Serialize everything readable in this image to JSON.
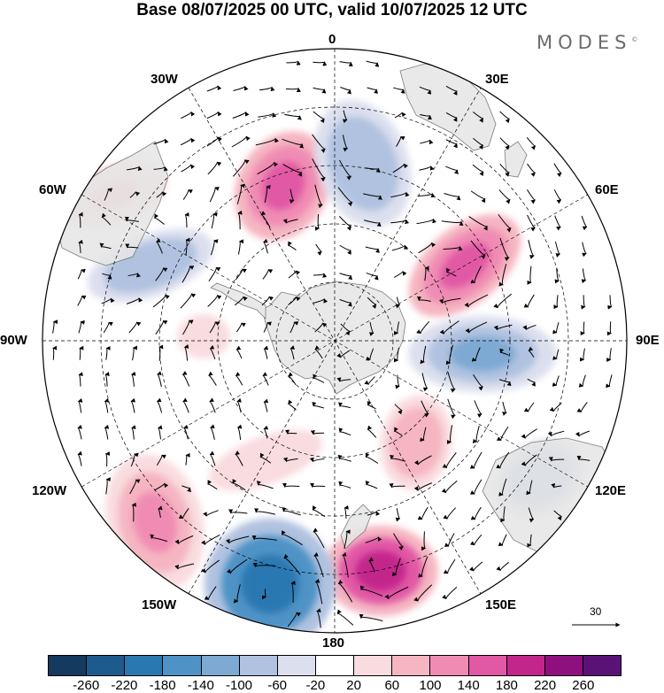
{
  "title": "Base 08/07/2025 00 UTC, valid 10/07/2025 12 UTC",
  "brand": "MODES",
  "brand_mark": "©",
  "labels": {
    "top": "0",
    "bottom": "180",
    "left": "90W",
    "right": "90E",
    "w30": "30W",
    "e30": "30E",
    "w60": "60W",
    "e60": "60E",
    "w120": "120W",
    "e120": "120E",
    "w150": "150W",
    "e150": "150E"
  },
  "reference_vector": {
    "value": "30",
    "icon": "arrow-right-icon"
  },
  "colorbar": {
    "colors": [
      "#153a5f",
      "#1d5b8f",
      "#2a78b2",
      "#4f93c6",
      "#7ea9d2",
      "#b0c2e0",
      "#dcdfee",
      "#ffffff",
      "#f9dcdf",
      "#f5b5c1",
      "#f08cb3",
      "#e159a5",
      "#c3268b",
      "#8e0f7e",
      "#5b1277"
    ],
    "ticks": [
      "-260",
      "-220",
      "-180",
      "-140",
      "-100",
      "-60",
      "-20",
      "20",
      "60",
      "100",
      "140",
      "180",
      "220",
      "260"
    ]
  },
  "map_colors": {
    "land": "#e6e6e6",
    "coast": "#666666",
    "grid": "#000000",
    "arrow": "#000000"
  },
  "anomalies": [
    {
      "name": "pink-southpacific-east",
      "v": 200
    },
    {
      "name": "blue-southpacific-center",
      "v": -200
    },
    {
      "name": "pink-pacific-west",
      "v": 120
    },
    {
      "name": "pink-atlantic-south",
      "v": 170
    },
    {
      "name": "blue-atlantic-east",
      "v": -100
    },
    {
      "name": "pink-indian-west",
      "v": 170
    },
    {
      "name": "blue-indian-center",
      "v": -110
    },
    {
      "name": "pink-indian-east",
      "v": 90
    },
    {
      "name": "blue-australia-west",
      "v": -90
    },
    {
      "name": "pink-southamerica-west",
      "v": 60
    },
    {
      "name": "blue-atlantic-west",
      "v": -90
    },
    {
      "name": "pink-ross-sea",
      "v": 50
    },
    {
      "name": "pink-weddell",
      "v": 40
    }
  ]
}
